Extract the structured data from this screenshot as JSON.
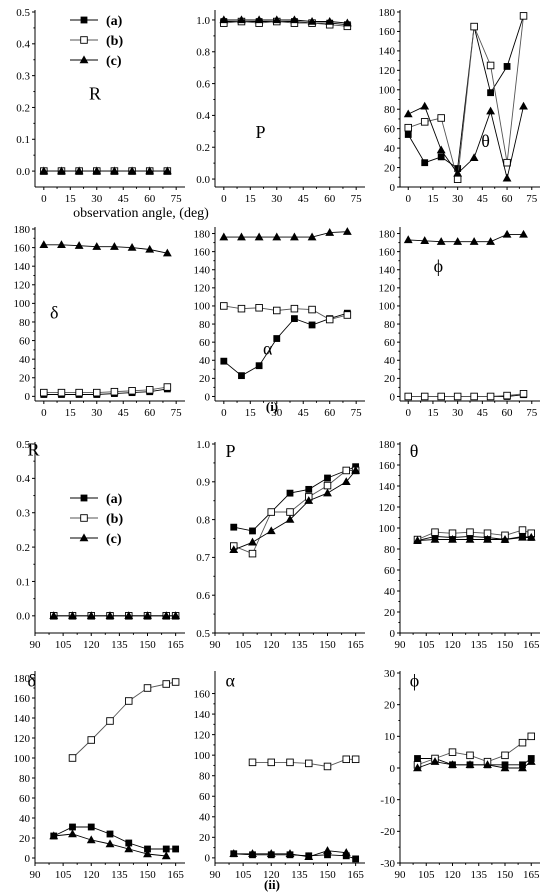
{
  "figure": {
    "caption_i": "(i)",
    "caption_ii": "(ii)",
    "x_axis_title": "observation angle, (deg)"
  },
  "legend": [
    {
      "label": "(a)",
      "marker": "filled-square"
    },
    {
      "label": "(b)",
      "marker": "open-square"
    },
    {
      "label": "(c)",
      "marker": "filled-triangle"
    }
  ],
  "chart_data": [
    {
      "id": "i-R",
      "type": "line",
      "group": "i",
      "label": "R",
      "xlim": [
        -5,
        80
      ],
      "xticks": [
        0,
        15,
        30,
        45,
        60,
        75
      ],
      "ylim": [
        -0.05,
        0.5
      ],
      "yticks": [
        0.0,
        0.1,
        0.2,
        0.3,
        0.4,
        0.5
      ],
      "ydec": 1,
      "x": [
        0,
        10,
        20,
        30,
        40,
        50,
        60,
        70
      ],
      "series": [
        {
          "name": "(a)",
          "marker": "filled-square",
          "values": [
            0,
            0,
            0,
            0,
            0,
            0,
            0,
            0
          ]
        },
        {
          "name": "(b)",
          "marker": "open-square",
          "values": [
            0,
            0,
            0,
            0,
            0,
            0,
            0,
            0
          ]
        },
        {
          "name": "(c)",
          "marker": "filled-triangle",
          "values": [
            0,
            0,
            0,
            0,
            0,
            0,
            0,
            0
          ]
        }
      ]
    },
    {
      "id": "i-P",
      "type": "line",
      "group": "i",
      "label": "P",
      "xlim": [
        -5,
        80
      ],
      "xticks": [
        0,
        15,
        30,
        45,
        60,
        75
      ],
      "ylim": [
        -0.05,
        1.05
      ],
      "yticks": [
        0.0,
        0.2,
        0.4,
        0.6,
        0.8,
        1.0
      ],
      "ydec": 1,
      "x": [
        0,
        10,
        20,
        30,
        40,
        50,
        60,
        70
      ],
      "series": [
        {
          "name": "(a)",
          "marker": "filled-square",
          "values": [
            0.99,
            0.99,
            0.99,
            0.99,
            0.99,
            0.98,
            0.98,
            0.97
          ]
        },
        {
          "name": "(b)",
          "marker": "open-square",
          "values": [
            0.98,
            0.99,
            0.98,
            0.99,
            0.98,
            0.98,
            0.97,
            0.96
          ]
        },
        {
          "name": "(c)",
          "marker": "filled-triangle",
          "values": [
            1.0,
            1.0,
            1.0,
            1.0,
            1.0,
            0.99,
            0.99,
            0.98
          ]
        }
      ]
    },
    {
      "id": "i-theta",
      "type": "line",
      "group": "i",
      "label": "θ",
      "xlim": [
        -5,
        80
      ],
      "xticks": [
        0,
        15,
        30,
        45,
        60,
        75
      ],
      "ylim": [
        0,
        180
      ],
      "yticks": [
        0,
        20,
        40,
        60,
        80,
        100,
        120,
        140,
        160,
        180
      ],
      "ydec": 0,
      "x": [
        0,
        10,
        20,
        30,
        40,
        50,
        60,
        70
      ],
      "series": [
        {
          "name": "(a)",
          "marker": "filled-square",
          "values": [
            54,
            25,
            31,
            19,
            165,
            97,
            124,
            176
          ]
        },
        {
          "name": "(b)",
          "marker": "open-square",
          "values": [
            61,
            67,
            71,
            8,
            165,
            125,
            25,
            176
          ]
        },
        {
          "name": "(c)",
          "marker": "filled-triangle",
          "values": [
            75,
            83,
            38,
            14,
            30,
            78,
            9,
            83
          ]
        }
      ]
    },
    {
      "id": "i-delta",
      "type": "line",
      "group": "i",
      "label": "δ",
      "xlim": [
        -5,
        80
      ],
      "xticks": [
        0,
        15,
        30,
        45,
        60,
        75
      ],
      "ylim": [
        -5,
        180
      ],
      "yticks": [
        0,
        20,
        40,
        60,
        80,
        100,
        120,
        140,
        160,
        180
      ],
      "ydec": 0,
      "x": [
        0,
        10,
        20,
        30,
        40,
        50,
        60,
        70
      ],
      "series": [
        {
          "name": "(a)",
          "marker": "filled-square",
          "values": [
            2,
            2,
            2,
            2,
            3,
            4,
            5,
            8
          ]
        },
        {
          "name": "(b)",
          "marker": "open-square",
          "values": [
            4,
            4,
            4,
            4,
            5,
            6,
            7,
            10
          ]
        },
        {
          "name": "(c)",
          "marker": "filled-triangle",
          "values": [
            163,
            163,
            162,
            161,
            161,
            160,
            158,
            154
          ]
        }
      ]
    },
    {
      "id": "i-alpha",
      "type": "line",
      "group": "i",
      "label": "α",
      "xlim": [
        -5,
        80
      ],
      "xticks": [
        0,
        15,
        30,
        45,
        60,
        75
      ],
      "ylim": [
        -5,
        185
      ],
      "yticks": [
        0,
        20,
        40,
        60,
        80,
        100,
        120,
        140,
        160,
        180
      ],
      "ydec": 0,
      "x": [
        0,
        10,
        20,
        30,
        40,
        50,
        60,
        70
      ],
      "series": [
        {
          "name": "(a)",
          "marker": "filled-square",
          "values": [
            39,
            23,
            34,
            64,
            86,
            79,
            86,
            92
          ]
        },
        {
          "name": "(b)",
          "marker": "open-square",
          "values": [
            100,
            97,
            98,
            95,
            97,
            96,
            85,
            90
          ]
        },
        {
          "name": "(c)",
          "marker": "filled-triangle",
          "values": [
            176,
            176,
            176,
            176,
            176,
            176,
            181,
            182
          ]
        }
      ]
    },
    {
      "id": "i-phi",
      "type": "line",
      "group": "i",
      "label": "ϕ",
      "xlim": [
        -5,
        80
      ],
      "xticks": [
        0,
        15,
        30,
        45,
        60,
        75
      ],
      "ylim": [
        -5,
        185
      ],
      "yticks": [
        0,
        20,
        40,
        60,
        80,
        100,
        120,
        140,
        160,
        180
      ],
      "ydec": 0,
      "x": [
        0,
        10,
        20,
        30,
        40,
        50,
        60,
        70
      ],
      "series": [
        {
          "name": "(a)",
          "marker": "filled-square",
          "values": [
            0,
            0,
            0,
            0,
            0,
            0,
            0,
            2
          ]
        },
        {
          "name": "(b)",
          "marker": "open-square",
          "values": [
            0,
            0,
            0,
            0,
            0,
            0,
            1,
            3
          ]
        },
        {
          "name": "(c)",
          "marker": "filled-triangle",
          "values": [
            173,
            172,
            171,
            171,
            171,
            171,
            179,
            179
          ]
        }
      ]
    },
    {
      "id": "ii-R",
      "type": "line",
      "group": "ii",
      "label": "R",
      "xlim": [
        90,
        170
      ],
      "xticks": [
        90,
        105,
        120,
        135,
        150,
        165
      ],
      "ylim": [
        -0.05,
        0.5
      ],
      "yticks": [
        0.0,
        0.1,
        0.2,
        0.3,
        0.4,
        0.5
      ],
      "ydec": 1,
      "x": [
        100,
        110,
        120,
        130,
        140,
        150,
        160,
        165
      ],
      "series": [
        {
          "name": "(a)",
          "marker": "filled-square",
          "values": [
            0,
            0,
            0,
            0,
            0,
            0,
            0,
            0
          ]
        },
        {
          "name": "(b)",
          "marker": "open-square",
          "values": [
            0,
            0,
            0,
            0,
            0,
            0,
            0,
            0
          ]
        },
        {
          "name": "(c)",
          "marker": "filled-triangle",
          "values": [
            0,
            0,
            0,
            0,
            0,
            0,
            0,
            0
          ]
        }
      ]
    },
    {
      "id": "ii-P",
      "type": "line",
      "group": "ii",
      "label": "P",
      "xlim": [
        90,
        170
      ],
      "xticks": [
        90,
        105,
        120,
        135,
        150,
        165
      ],
      "ylim": [
        0.5,
        1.0
      ],
      "yticks": [
        0.5,
        0.6,
        0.7,
        0.8,
        0.9,
        1.0
      ],
      "ydec": 1,
      "x": [
        100,
        110,
        120,
        130,
        140,
        150,
        160,
        165
      ],
      "series": [
        {
          "name": "(a)",
          "marker": "filled-square",
          "values": [
            0.78,
            0.77,
            0.82,
            0.87,
            0.88,
            0.91,
            0.93,
            0.94
          ]
        },
        {
          "name": "(b)",
          "marker": "open-square",
          "values": [
            0.73,
            0.71,
            0.82,
            0.82,
            0.86,
            0.89,
            0.93,
            0.93
          ]
        },
        {
          "name": "(c)",
          "marker": "filled-triangle",
          "values": [
            0.72,
            0.74,
            0.77,
            0.8,
            0.85,
            0.87,
            0.9,
            0.93
          ]
        }
      ]
    },
    {
      "id": "ii-theta",
      "type": "line",
      "group": "ii",
      "label": "θ",
      "xlim": [
        90,
        170
      ],
      "xticks": [
        90,
        105,
        120,
        135,
        150,
        165
      ],
      "ylim": [
        0,
        180
      ],
      "yticks": [
        0,
        20,
        40,
        60,
        80,
        100,
        120,
        140,
        160,
        180
      ],
      "ydec": 0,
      "x": [
        100,
        110,
        120,
        130,
        140,
        150,
        160,
        165
      ],
      "series": [
        {
          "name": "(a)",
          "marker": "filled-square",
          "values": [
            88,
            92,
            91,
            92,
            91,
            89,
            92,
            91
          ]
        },
        {
          "name": "(b)",
          "marker": "open-square",
          "values": [
            89,
            96,
            95,
            96,
            95,
            93,
            98,
            95
          ]
        },
        {
          "name": "(c)",
          "marker": "filled-triangle",
          "values": [
            88,
            89,
            89,
            89,
            89,
            89,
            91,
            91
          ]
        }
      ]
    },
    {
      "id": "ii-delta",
      "type": "line",
      "group": "ii",
      "label": "δ",
      "xlim": [
        90,
        170
      ],
      "xticks": [
        90,
        105,
        120,
        135,
        150,
        165
      ],
      "ylim": [
        -5,
        185
      ],
      "yticks": [
        0,
        20,
        40,
        60,
        80,
        100,
        120,
        140,
        160,
        180
      ],
      "ydec": 0,
      "x": [
        100,
        110,
        120,
        130,
        140,
        150,
        160,
        165
      ],
      "series": [
        {
          "name": "(a)",
          "marker": "filled-square",
          "values": [
            22,
            31,
            31,
            24,
            15,
            9,
            9,
            9
          ]
        },
        {
          "name": "(b)",
          "marker": "open-square",
          "values": [
            null,
            100,
            118,
            137,
            157,
            170,
            174,
            176
          ]
        },
        {
          "name": "(c)",
          "marker": "filled-triangle",
          "values": [
            22,
            24,
            18,
            14,
            9,
            4,
            2,
            null
          ]
        }
      ]
    },
    {
      "id": "ii-alpha",
      "type": "line",
      "group": "ii",
      "label": "α",
      "xlim": [
        90,
        170
      ],
      "xticks": [
        90,
        105,
        120,
        135,
        150,
        165
      ],
      "ylim": [
        -5,
        180
      ],
      "yticks": [
        0,
        20,
        40,
        60,
        80,
        100,
        120,
        140,
        160
      ],
      "ydec": 0,
      "x": [
        100,
        110,
        120,
        130,
        140,
        150,
        160,
        165
      ],
      "series": [
        {
          "name": "(a)",
          "marker": "filled-square",
          "values": [
            4,
            3,
            3,
            3,
            2,
            3,
            2,
            -1
          ]
        },
        {
          "name": "(b)",
          "marker": "open-square",
          "values": [
            null,
            93,
            93,
            93,
            92,
            89,
            96,
            96
          ]
        },
        {
          "name": "(c)",
          "marker": "filled-triangle",
          "values": [
            4,
            4,
            4,
            4,
            1,
            7,
            5,
            null
          ]
        }
      ]
    },
    {
      "id": "ii-phi",
      "type": "line",
      "group": "ii",
      "label": "ϕ",
      "xlim": [
        90,
        170
      ],
      "xticks": [
        90,
        105,
        120,
        135,
        150,
        165
      ],
      "ylim": [
        -30,
        30
      ],
      "yticks": [
        -30,
        -20,
        -10,
        0,
        10,
        20,
        30
      ],
      "ydec": 0,
      "x": [
        100,
        110,
        120,
        130,
        140,
        150,
        160,
        165
      ],
      "series": [
        {
          "name": "(a)",
          "marker": "filled-square",
          "values": [
            3,
            3,
            1,
            1,
            1,
            1,
            1,
            3
          ]
        },
        {
          "name": "(b)",
          "marker": "open-square",
          "values": [
            1,
            3,
            5,
            4,
            2,
            4,
            8,
            10
          ]
        },
        {
          "name": "(c)",
          "marker": "filled-triangle",
          "values": [
            0,
            2,
            1,
            1,
            1,
            0,
            0,
            2
          ]
        }
      ]
    }
  ]
}
